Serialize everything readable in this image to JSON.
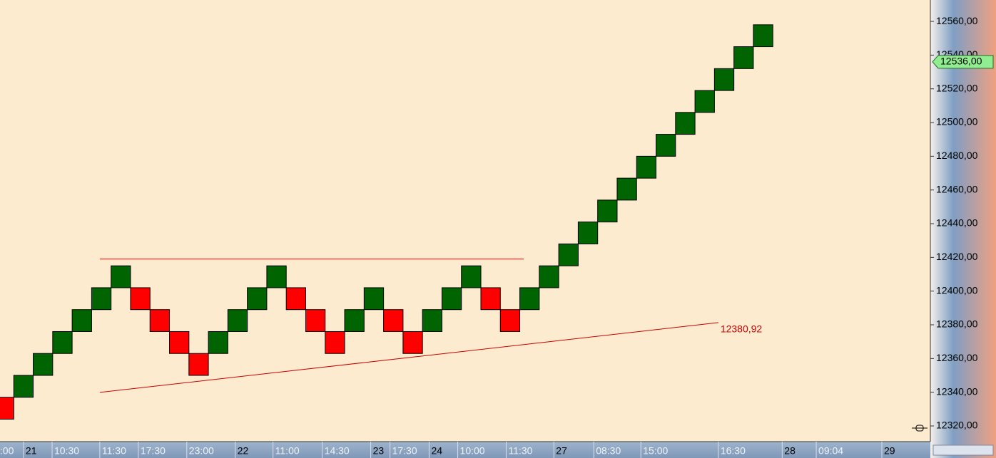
{
  "chart_data": {
    "type": "renko",
    "open": [
      12337,
      12337,
      12350,
      12363,
      12376,
      12389,
      12402,
      12402,
      12389,
      12376,
      12363,
      12363,
      12376,
      12389,
      12402,
      12402,
      12389,
      12376,
      12376,
      12389,
      12389,
      12376,
      12376,
      12389,
      12402,
      12402,
      12389,
      12389,
      12402,
      12415,
      12428,
      12441,
      12454,
      12467,
      12480,
      12493,
      12506,
      12519,
      12532,
      12545
    ],
    "close": [
      12324,
      12350,
      12363,
      12376,
      12389,
      12402,
      12415,
      12389,
      12376,
      12363,
      12350,
      12376,
      12389,
      12402,
      12415,
      12389,
      12376,
      12363,
      12389,
      12402,
      12376,
      12363,
      12389,
      12402,
      12415,
      12389,
      12376,
      12402,
      12415,
      12428,
      12441,
      12454,
      12467,
      12480,
      12493,
      12506,
      12519,
      12532,
      12545,
      12558
    ],
    "up_color": "#006400",
    "down_color": "#ff0000",
    "ylim": [
      12310.7,
      12572.7
    ],
    "yticks": [
      {
        "value": 12320,
        "label": "12320,00"
      },
      {
        "value": 12340,
        "label": "12340,00"
      },
      {
        "value": 12360,
        "label": "12360,00"
      },
      {
        "value": 12380,
        "label": "12380,00"
      },
      {
        "value": 12400,
        "label": "12400,00"
      },
      {
        "value": 12420,
        "label": "12420,00"
      },
      {
        "value": 12440,
        "label": "12440,00"
      },
      {
        "value": 12460,
        "label": "12460,00"
      },
      {
        "value": 12480,
        "label": "12480,00"
      },
      {
        "value": 12500,
        "label": "12500,00"
      },
      {
        "value": 12520,
        "label": "12520,00"
      },
      {
        "value": 12540,
        "label": "12540,00"
      },
      {
        "value": 12560,
        "label": "12560,00"
      }
    ],
    "xlim": [
      -0.3,
      47.5
    ],
    "xticks": [
      {
        "value": 0.18,
        "label": ":00"
      },
      {
        "value": 1.5,
        "label": "21"
      },
      {
        "value": 2.97,
        "label": "10:30"
      },
      {
        "value": 5.42,
        "label": "11:30"
      },
      {
        "value": 7.4,
        "label": "17:30"
      },
      {
        "value": 9.89,
        "label": "23:00"
      },
      {
        "value": 12.38,
        "label": "22"
      },
      {
        "value": 14.32,
        "label": "11:00"
      },
      {
        "value": 16.85,
        "label": "14:30"
      },
      {
        "value": 19.34,
        "label": "23"
      },
      {
        "value": 20.33,
        "label": "17:30"
      },
      {
        "value": 22.34,
        "label": "24"
      },
      {
        "value": 23.81,
        "label": "10:00"
      },
      {
        "value": 26.3,
        "label": "11:30"
      },
      {
        "value": 28.75,
        "label": "27"
      },
      {
        "value": 30.8,
        "label": "08:30"
      },
      {
        "value": 33.22,
        "label": "15:00"
      },
      {
        "value": 37.2,
        "label": "16:30"
      },
      {
        "value": 40.48,
        "label": "28"
      },
      {
        "value": 42.23,
        "label": "09:04"
      },
      {
        "value": 45.6,
        "label": "29"
      }
    ],
    "price_marker": {
      "value": 12536,
      "label": "12536,00",
      "color": "#90ee90"
    },
    "lines": [
      {
        "x": [
          5.42,
          27.2
        ],
        "y": [
          12419,
          12419
        ],
        "color": "#ff0000"
      },
      {
        "x": [
          5.42,
          37.2
        ],
        "y": [
          12339.9,
          12381.3
        ],
        "color": "#cc0000",
        "label": "12380,92"
      }
    ]
  }
}
